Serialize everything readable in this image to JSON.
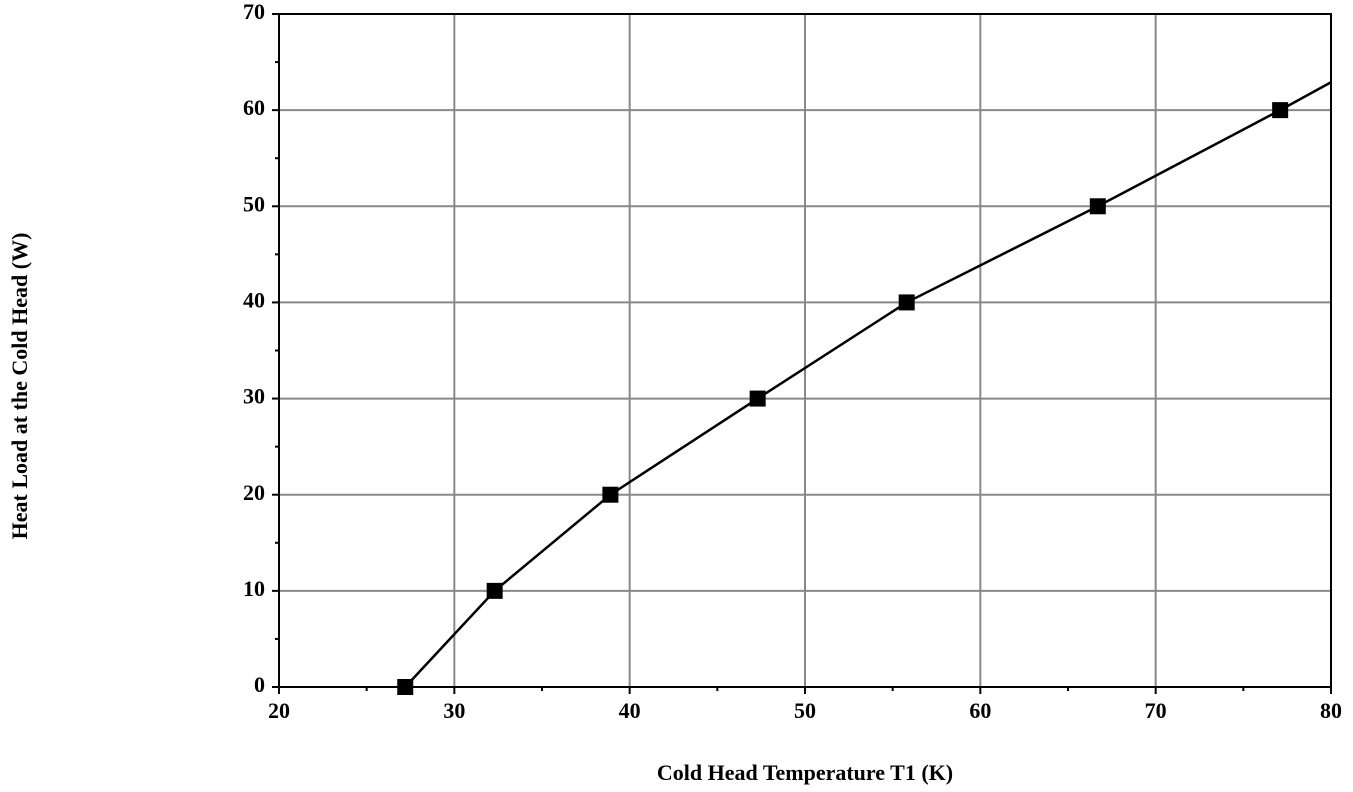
{
  "chart_data": {
    "type": "line",
    "xlabel": "Cold Head Temperature T1 (K)",
    "ylabel": "Heat Load at the Cold Head (W)",
    "xlim": [
      20,
      80
    ],
    "ylim": [
      0,
      70
    ],
    "xticks": [
      20,
      30,
      40,
      50,
      60,
      70,
      80
    ],
    "yticks": [
      0,
      10,
      20,
      30,
      40,
      50,
      60,
      70
    ],
    "xminorticks": [
      25,
      35,
      45,
      55,
      65,
      75
    ],
    "yminorticks": [
      5,
      15,
      25,
      35,
      45,
      55,
      65
    ],
    "grid": true,
    "series": [
      {
        "color": "#000000",
        "marker": "square",
        "line": false,
        "x": [
          27.2,
          32.3,
          38.9,
          47.3,
          55.8,
          66.7,
          77.1
        ],
        "values": [
          0,
          10,
          20,
          30,
          40,
          50,
          60
        ]
      },
      {
        "color": "#000000",
        "marker": "none",
        "line": true,
        "x": [
          27.2,
          32.3,
          38.9,
          47.3,
          55.8,
          66.7,
          77.1,
          80
        ],
        "values": [
          0,
          10,
          20,
          30,
          40,
          50,
          60,
          62.9
        ]
      }
    ]
  }
}
